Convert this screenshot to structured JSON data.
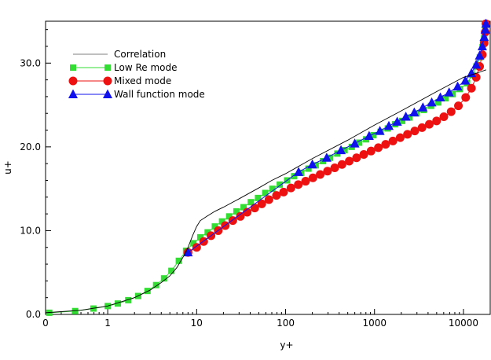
{
  "chart_data": {
    "type": "line",
    "xlabel": "y+",
    "ylabel": "u+",
    "xscale": "log",
    "xlim": [
      0.2,
      20000
    ],
    "ylim": [
      0,
      35
    ],
    "x_tick_values": [
      0.2,
      1,
      10,
      100,
      1000,
      10000
    ],
    "x_tick_labels": [
      "0",
      "1",
      "10",
      "100",
      "1000",
      "10000"
    ],
    "y_tick_values": [
      0,
      10,
      20,
      30
    ],
    "y_tick_labels": [
      "0.0",
      "10.0",
      "20.0",
      "30.0"
    ],
    "grid": false,
    "legend_position": "top-left",
    "series": [
      {
        "name": "Correlation",
        "color": "#000000",
        "marker": "none",
        "x": [
          0.2,
          0.5,
          1,
          2,
          3,
          4,
          5,
          6,
          7,
          8,
          9,
          10,
          11,
          13,
          16,
          20,
          30,
          50,
          70,
          100,
          200,
          500,
          1000,
          2000,
          5000,
          10000,
          15000,
          18000
        ],
        "y": [
          0.2,
          0.5,
          1.0,
          2.0,
          2.9,
          3.8,
          4.6,
          5.6,
          6.8,
          8.0,
          9.4,
          10.5,
          11.2,
          11.7,
          12.3,
          12.8,
          13.8,
          15.1,
          16.0,
          16.8,
          18.6,
          20.8,
          22.6,
          24.3,
          26.6,
          28.3,
          28.9,
          29.2
        ]
      },
      {
        "name": "Low Re mode",
        "color": "#33dd33",
        "marker": "square",
        "x": [
          0.22,
          0.43,
          0.69,
          1.0,
          1.3,
          1.7,
          2.2,
          2.8,
          3.5,
          4.3,
          5.2,
          6.3,
          7.6,
          9.2,
          11,
          13.3,
          16,
          19.3,
          23.2,
          28,
          33.7,
          40.6,
          49,
          59,
          71,
          86,
          104,
          125,
          150,
          181,
          218,
          263,
          317,
          382,
          461,
          555,
          669,
          806,
          972,
          1171,
          1411,
          1700,
          2050,
          2470,
          2977,
          3588,
          4324,
          5211,
          6280,
          7568,
          9121,
          10992,
          12600,
          14000,
          15300,
          16400,
          17100,
          17600,
          17800
        ],
        "y": [
          0.2,
          0.4,
          0.7,
          1.0,
          1.3,
          1.7,
          2.2,
          2.8,
          3.5,
          4.3,
          5.2,
          6.4,
          7.6,
          8.5,
          9.2,
          9.8,
          10.5,
          11.1,
          11.7,
          12.3,
          12.8,
          13.4,
          13.9,
          14.5,
          15.0,
          15.5,
          16.0,
          16.5,
          16.9,
          17.4,
          17.8,
          18.3,
          18.7,
          19.2,
          19.6,
          20.0,
          20.5,
          20.9,
          21.4,
          21.8,
          22.2,
          22.7,
          23.1,
          23.5,
          24.0,
          24.4,
          24.9,
          25.3,
          25.8,
          26.3,
          26.9,
          27.6,
          28.6,
          29.6,
          30.7,
          31.9,
          33.0,
          34.0,
          34.6
        ]
      },
      {
        "name": "Mixed mode",
        "color": "#ee1111",
        "marker": "circle",
        "x": [
          8,
          10,
          12,
          14.5,
          17.5,
          21,
          25.5,
          31,
          37,
          45,
          54,
          65,
          79,
          95,
          115,
          139,
          168,
          203,
          245,
          296,
          357,
          431,
          520,
          628,
          758,
          915,
          1105,
          1334,
          1611,
          1945,
          2348,
          2835,
          3423,
          4132,
          4989,
          6023,
          7272,
          8779,
          10600,
          12300,
          13900,
          15200,
          16300,
          17100,
          17600,
          17900
        ],
        "y": [
          7.4,
          8.0,
          8.7,
          9.4,
          10.0,
          10.6,
          11.2,
          11.7,
          12.2,
          12.7,
          13.2,
          13.7,
          14.2,
          14.6,
          15.1,
          15.5,
          15.9,
          16.3,
          16.7,
          17.1,
          17.5,
          17.9,
          18.3,
          18.7,
          19.1,
          19.5,
          19.9,
          20.3,
          20.7,
          21.1,
          21.5,
          21.9,
          22.3,
          22.7,
          23.1,
          23.6,
          24.2,
          24.9,
          25.9,
          27.0,
          28.3,
          29.6,
          31.0,
          32.4,
          33.7,
          34.7
        ]
      },
      {
        "name": "Wall function mode",
        "color": "#1111ee",
        "marker": "triangle",
        "x": [
          8,
          140,
          200,
          290,
          420,
          600,
          870,
          1150,
          1450,
          1800,
          2250,
          2800,
          3500,
          4400,
          5500,
          6900,
          8600,
          10500,
          12300,
          13900,
          15200,
          16300,
          17100,
          17600,
          17900
        ],
        "y": [
          7.4,
          17.0,
          17.9,
          18.7,
          19.6,
          20.4,
          21.3,
          21.9,
          22.5,
          23.0,
          23.6,
          24.1,
          24.7,
          25.3,
          25.9,
          26.5,
          27.2,
          27.9,
          28.8,
          29.8,
          30.9,
          32.0,
          33.1,
          34.0,
          34.7
        ]
      }
    ]
  }
}
